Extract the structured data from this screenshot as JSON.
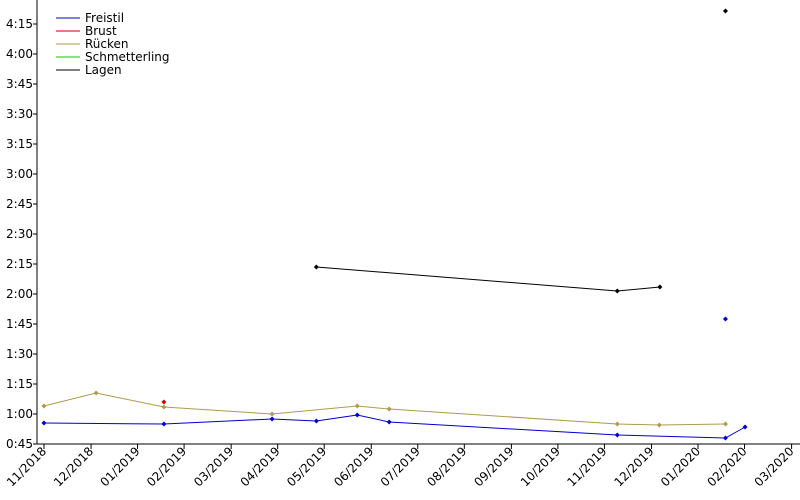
{
  "chart_data": {
    "type": "line",
    "xlim": [
      2018.817,
      2020.182
    ],
    "xticks": [
      {
        "value": 2018.833,
        "label": "11/2018"
      },
      {
        "value": 2018.917,
        "label": "12/2018"
      },
      {
        "value": 2019.0,
        "label": "01/2019"
      },
      {
        "value": 2019.083,
        "label": "02/2019"
      },
      {
        "value": 2019.167,
        "label": "03/2019"
      },
      {
        "value": 2019.25,
        "label": "04/2019"
      },
      {
        "value": 2019.333,
        "label": "05/2019"
      },
      {
        "value": 2019.417,
        "label": "06/2019"
      },
      {
        "value": 2019.5,
        "label": "07/2019"
      },
      {
        "value": 2019.583,
        "label": "08/2019"
      },
      {
        "value": 2019.667,
        "label": "09/2019"
      },
      {
        "value": 2019.75,
        "label": "10/2019"
      },
      {
        "value": 2019.833,
        "label": "11/2019"
      },
      {
        "value": 2019.917,
        "label": "12/2019"
      },
      {
        "value": 2020.0,
        "label": "01/2020"
      },
      {
        "value": 2020.083,
        "label": "02/2020"
      },
      {
        "value": 2020.167,
        "label": "03/2020"
      }
    ],
    "ylim": [
      45,
      267
    ],
    "yticks": [
      {
        "value": 45,
        "label": "0:45"
      },
      {
        "value": 60,
        "label": "1:00"
      },
      {
        "value": 75,
        "label": "1:15"
      },
      {
        "value": 90,
        "label": "1:30"
      },
      {
        "value": 105,
        "label": "1:45"
      },
      {
        "value": 120,
        "label": "2:00"
      },
      {
        "value": 135,
        "label": "2:15"
      },
      {
        "value": 150,
        "label": "2:30"
      },
      {
        "value": 165,
        "label": "2:45"
      },
      {
        "value": 180,
        "label": "3:00"
      },
      {
        "value": 195,
        "label": "3:15"
      },
      {
        "value": 210,
        "label": "3:30"
      },
      {
        "value": 225,
        "label": "3:45"
      },
      {
        "value": 240,
        "label": "4:00"
      },
      {
        "value": 255,
        "label": "4:15"
      }
    ],
    "legend": "upper left",
    "series": [
      {
        "name": "Freistil",
        "color": "#0000cc",
        "x": [
          2018.833,
          2019.047,
          2019.24,
          2019.319,
          2019.392,
          2019.449,
          2019.856,
          2020.049,
          2020.084,
          null,
          2020.049
        ],
        "values": [
          55.5,
          55,
          57.5,
          56.5,
          59.5,
          56,
          49.5,
          48,
          53.5,
          null,
          107.5
        ]
      },
      {
        "name": "Brust",
        "color": "#cc0000",
        "x": [
          2019.047
        ],
        "values": [
          66
        ]
      },
      {
        "name": "Rücken",
        "color": "#b09a50",
        "x": [
          2018.833,
          2018.926,
          2019.047,
          2019.24,
          2019.392,
          2019.449,
          2019.856,
          2019.931,
          2020.049
        ],
        "values": [
          64,
          70.5,
          63.5,
          60,
          64,
          62.5,
          55,
          54.5,
          55
        ]
      },
      {
        "name": "Schmetterling",
        "color": "#00cc00",
        "x": [],
        "values": []
      },
      {
        "name": "Lagen",
        "color": "#000000",
        "x": [
          2019.319,
          2019.856,
          2019.932,
          null,
          2020.049
        ],
        "values": [
          133.5,
          121.5,
          123.5,
          null,
          261.5
        ]
      }
    ]
  }
}
